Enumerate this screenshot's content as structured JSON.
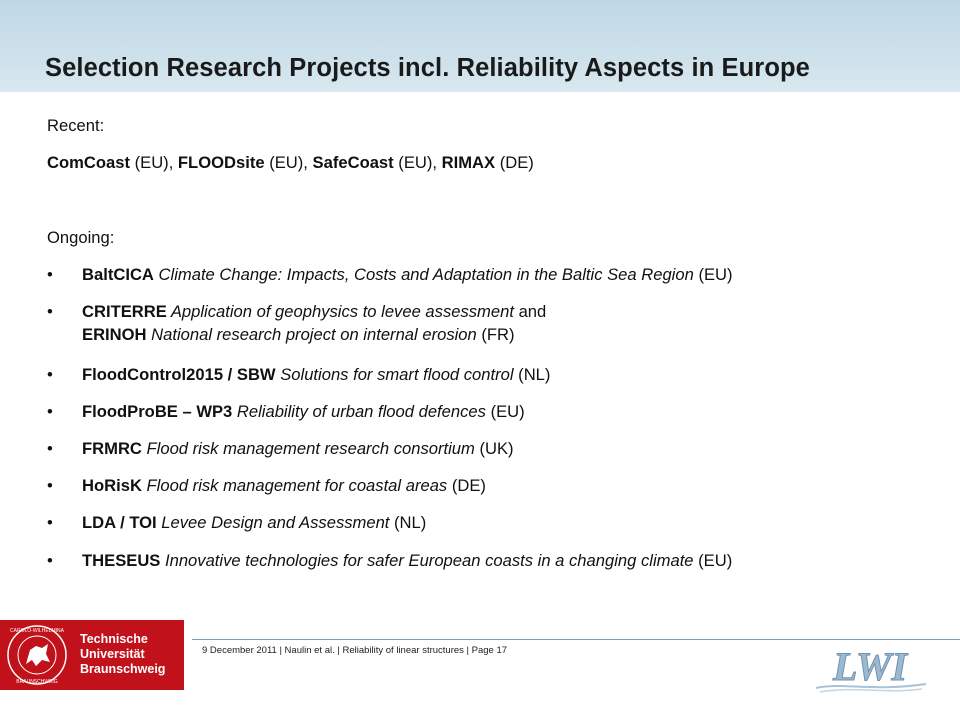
{
  "title": "Selection Research Projects incl. Reliability Aspects in Europe",
  "recent": {
    "heading": "Recent:",
    "items": [
      {
        "name": "ComCoast",
        "tag": " (EU), "
      },
      {
        "name": "FLOODsite",
        "tag": " (EU), "
      },
      {
        "name": "SafeCoast",
        "tag": " (EU), "
      },
      {
        "name": "RIMAX",
        "tag": " (DE)"
      }
    ]
  },
  "ongoing": {
    "heading": "Ongoing:",
    "bullet": "•",
    "items": [
      {
        "name": "BaltCICA",
        "desc": " Climate Change: Impacts, Costs and Adaptation in the Baltic Sea Region",
        "tag": " (EU)"
      },
      {
        "name": "CRITERRE",
        "desc": " Application of geophysics to levee assessment",
        "tag": " and"
      },
      {
        "name": "ERINOH",
        "desc": " National research project on internal erosion",
        "tag": " (FR)"
      },
      {
        "name": "FloodControl2015 / SBW",
        "desc": " Solutions for smart flood control",
        "tag": " (NL)"
      },
      {
        "name": "FloodProBE – WP3",
        "desc": " Reliability of urban flood defences",
        "tag": " (EU)"
      },
      {
        "name": "FRMRC",
        "desc": " Flood risk management research consortium",
        "tag": " (UK)"
      },
      {
        "name": "HoRisK",
        "desc": " Flood risk management for coastal areas",
        "tag": " (DE)"
      },
      {
        "name": "LDA / TOI",
        "desc": "  Levee Design and Assessment",
        "tag": " (NL)"
      },
      {
        "name": "THESEUS",
        "desc": " Innovative technologies for safer European coasts in a changing climate",
        "tag": " (EU)"
      }
    ]
  },
  "footer": {
    "text": "9 December 2011 | Naulin et al. | Reliability of linear structures | Page 17"
  },
  "logo_tu": {
    "line1": "Technische",
    "line2": "Universität",
    "line3": "Braunschweig",
    "seal_text": "CAROLO-WILHELMINA BRAUNSCHWEIG"
  },
  "logo_lwi": {
    "text": "LWI"
  },
  "colors": {
    "header_band": "#cfe2ec",
    "tu_red": "#c1121c",
    "lwi_blue": "#8fb0cc"
  }
}
